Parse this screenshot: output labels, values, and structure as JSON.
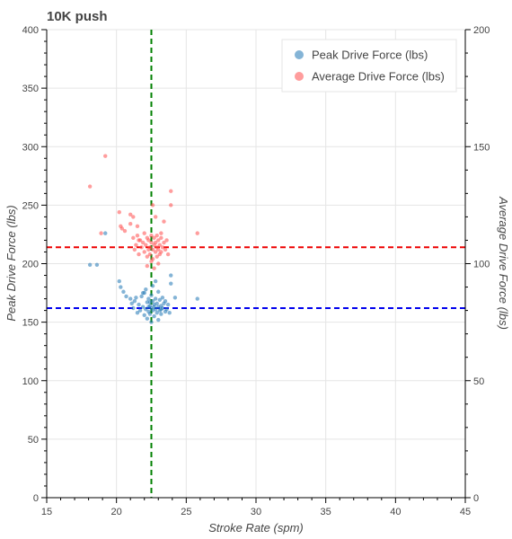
{
  "chart_data": {
    "type": "scatter",
    "title": "10K push",
    "xlabel": "Stroke Rate (spm)",
    "ylabel": "Peak Drive Force (lbs)",
    "y2label": "Average Drive Force (lbs)",
    "xlim": [
      15,
      45
    ],
    "ylim": [
      0,
      400
    ],
    "y2lim": [
      0,
      200
    ],
    "x_ticks": [
      15,
      20,
      25,
      30,
      35,
      40,
      45
    ],
    "y_ticks": [
      0,
      50,
      100,
      150,
      200,
      250,
      300,
      350,
      400
    ],
    "y2_ticks": [
      0,
      50,
      100,
      150,
      200
    ],
    "grid": true,
    "legend_position": "top-right",
    "series": [
      {
        "name": "Peak Drive Force (lbs)",
        "color": "#1f77b4",
        "axis": "left",
        "points": [
          [
            18.1,
            199
          ],
          [
            18.6,
            199
          ],
          [
            19.2,
            226
          ],
          [
            20.2,
            185
          ],
          [
            20.3,
            180
          ],
          [
            20.5,
            176
          ],
          [
            20.7,
            172
          ],
          [
            21.0,
            170
          ],
          [
            21.1,
            166
          ],
          [
            21.2,
            162
          ],
          [
            21.3,
            168
          ],
          [
            21.4,
            171
          ],
          [
            21.5,
            158
          ],
          [
            21.6,
            165
          ],
          [
            21.7,
            160
          ],
          [
            21.8,
            172
          ],
          [
            21.9,
            163
          ],
          [
            22.0,
            156
          ],
          [
            22.0,
            175
          ],
          [
            22.1,
            161
          ],
          [
            22.2,
            167
          ],
          [
            22.2,
            153
          ],
          [
            22.3,
            170
          ],
          [
            22.3,
            159
          ],
          [
            22.4,
            164
          ],
          [
            22.4,
            157
          ],
          [
            22.5,
            162
          ],
          [
            22.5,
            173
          ],
          [
            22.6,
            160
          ],
          [
            22.6,
            168
          ],
          [
            22.7,
            155
          ],
          [
            22.7,
            165
          ],
          [
            22.8,
            161
          ],
          [
            22.8,
            170
          ],
          [
            22.9,
            158
          ],
          [
            22.9,
            166
          ],
          [
            23.0,
            163
          ],
          [
            23.0,
            152
          ],
          [
            23.1,
            169
          ],
          [
            23.1,
            160
          ],
          [
            23.2,
            164
          ],
          [
            23.2,
            157
          ],
          [
            23.3,
            171
          ],
          [
            23.3,
            162
          ],
          [
            23.4,
            166
          ],
          [
            23.5,
            159
          ],
          [
            23.5,
            168
          ],
          [
            23.6,
            161
          ],
          [
            23.7,
            165
          ],
          [
            23.8,
            158
          ],
          [
            23.9,
            190
          ],
          [
            23.9,
            183
          ],
          [
            24.2,
            171
          ],
          [
            22.6,
            181
          ],
          [
            22.8,
            185
          ],
          [
            22.1,
            178
          ],
          [
            21.9,
            175
          ],
          [
            22.5,
            150
          ],
          [
            23.0,
            176
          ],
          [
            25.8,
            170
          ],
          [
            22.4,
            167
          ],
          [
            22.7,
            163
          ],
          [
            23.2,
            161
          ],
          [
            22.3,
            163
          ]
        ]
      },
      {
        "name": "Average Drive Force (lbs)",
        "color": "#ff4d4d",
        "axis": "right",
        "points": [
          [
            18.1,
            133
          ],
          [
            19.2,
            146
          ],
          [
            18.9,
            113
          ],
          [
            20.2,
            122
          ],
          [
            20.3,
            116
          ],
          [
            20.4,
            115
          ],
          [
            20.6,
            114
          ],
          [
            21.0,
            117
          ],
          [
            21.2,
            111
          ],
          [
            21.3,
            106
          ],
          [
            21.4,
            108
          ],
          [
            21.5,
            112
          ],
          [
            21.6,
            104
          ],
          [
            21.7,
            110
          ],
          [
            21.8,
            107
          ],
          [
            21.9,
            109
          ],
          [
            22.0,
            113
          ],
          [
            22.0,
            105
          ],
          [
            22.1,
            108
          ],
          [
            22.2,
            111
          ],
          [
            22.2,
            103
          ],
          [
            22.3,
            106
          ],
          [
            22.3,
            110
          ],
          [
            22.4,
            107
          ],
          [
            22.4,
            104
          ],
          [
            22.5,
            109
          ],
          [
            22.5,
            112
          ],
          [
            22.6,
            106
          ],
          [
            22.6,
            102
          ],
          [
            22.7,
            108
          ],
          [
            22.7,
            111
          ],
          [
            22.8,
            105
          ],
          [
            22.8,
            109
          ],
          [
            22.9,
            107
          ],
          [
            22.9,
            103
          ],
          [
            23.0,
            110
          ],
          [
            23.0,
            106
          ],
          [
            23.1,
            104
          ],
          [
            23.1,
            108
          ],
          [
            23.2,
            111
          ],
          [
            23.2,
            105
          ],
          [
            23.3,
            107
          ],
          [
            23.4,
            109
          ],
          [
            23.5,
            106
          ],
          [
            23.6,
            110
          ],
          [
            23.7,
            104
          ],
          [
            22.6,
            125
          ],
          [
            22.8,
            120
          ],
          [
            23.4,
            118
          ],
          [
            23.9,
            131
          ],
          [
            23.9,
            125
          ],
          [
            25.8,
            113
          ],
          [
            22.7,
            98
          ],
          [
            23.0,
            100
          ],
          [
            22.2,
            99
          ],
          [
            22.5,
            101
          ],
          [
            21.5,
            116
          ],
          [
            21.0,
            121
          ],
          [
            21.2,
            120
          ],
          [
            23.2,
            113
          ],
          [
            21.6,
            110
          ],
          [
            22.9,
            112
          ]
        ]
      }
    ],
    "reference_lines": [
      {
        "orientation": "vertical",
        "axis": "x",
        "value": 22.5,
        "color": "#008000"
      },
      {
        "orientation": "horizontal",
        "axis": "left",
        "value": 162,
        "color": "#0000ee"
      },
      {
        "orientation": "horizontal",
        "axis": "right",
        "value": 107,
        "color": "#ee0000"
      }
    ]
  }
}
